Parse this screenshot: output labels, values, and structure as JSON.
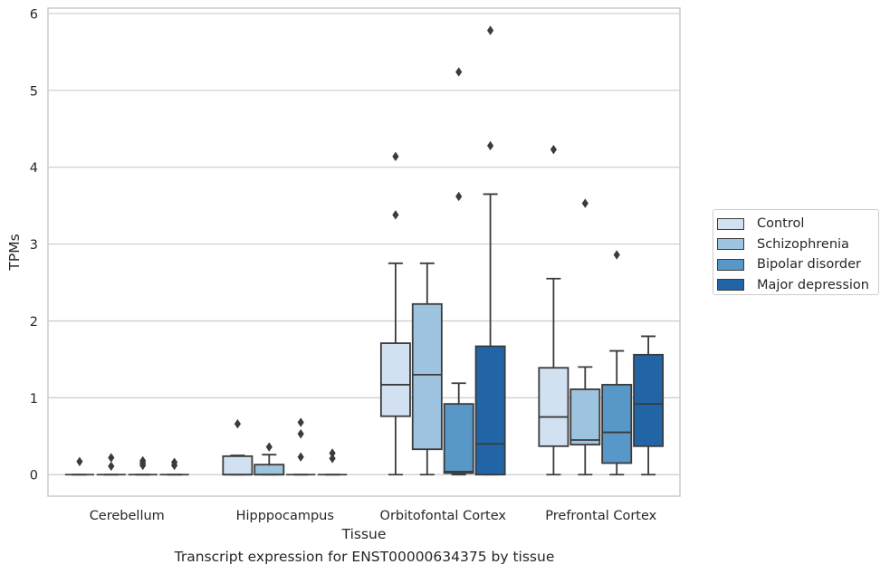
{
  "chart_data": {
    "type": "boxplot",
    "title": "",
    "caption": "Transcript expression for ENST00000634375 by tissue",
    "xlabel": "Tissue",
    "ylabel": "TPMs",
    "ylim": [
      -0.28,
      6.07
    ],
    "yticks": [
      0,
      1,
      2,
      3,
      4,
      5,
      6
    ],
    "grid": "horizontal",
    "legend_position": "right",
    "categories": [
      "Cerebellum",
      "Hipppocampus",
      "Orbitofontal Cortex",
      "Prefrontal Cortex"
    ],
    "series": [
      {
        "name": "Control",
        "color": "#d2e1f1",
        "boxes": [
          {
            "q1": 0,
            "median": 0,
            "q3": 0,
            "whisker_low": 0,
            "whisker_high": 0,
            "outliers": [
              0.17
            ]
          },
          {
            "q1": 0,
            "median": 0,
            "q3": 0.24,
            "whisker_low": 0,
            "whisker_high": 0.25,
            "outliers": [
              0.66
            ]
          },
          {
            "q1": 0.76,
            "median": 1.17,
            "q3": 1.71,
            "whisker_low": 0,
            "whisker_high": 2.75,
            "outliers": [
              3.38,
              4.14
            ]
          },
          {
            "q1": 0.37,
            "median": 0.75,
            "q3": 1.39,
            "whisker_low": 0,
            "whisker_high": 2.55,
            "outliers": [
              4.23
            ]
          }
        ]
      },
      {
        "name": "Schizophrenia",
        "color": "#9dc3df",
        "boxes": [
          {
            "q1": 0,
            "median": 0,
            "q3": 0,
            "whisker_low": 0,
            "whisker_high": 0,
            "outliers": [
              0.22,
              0.11
            ]
          },
          {
            "q1": 0,
            "median": 0,
            "q3": 0.13,
            "whisker_low": 0,
            "whisker_high": 0.26,
            "outliers": [
              0.36
            ]
          },
          {
            "q1": 0.33,
            "median": 1.3,
            "q3": 2.22,
            "whisker_low": 0,
            "whisker_high": 2.75,
            "outliers": []
          },
          {
            "q1": 0.39,
            "median": 0.45,
            "q3": 1.11,
            "whisker_low": 0,
            "whisker_high": 1.4,
            "outliers": [
              3.53
            ]
          }
        ]
      },
      {
        "name": "Bipolar disorder",
        "color": "#5898c9",
        "boxes": [
          {
            "q1": 0,
            "median": 0,
            "q3": 0,
            "whisker_low": 0,
            "whisker_high": 0,
            "outliers": [
              0.18,
              0.15,
              0.12
            ]
          },
          {
            "q1": 0,
            "median": 0,
            "q3": 0,
            "whisker_low": 0,
            "whisker_high": 0,
            "outliers": [
              0.23,
              0.53,
              0.68
            ]
          },
          {
            "q1": 0.02,
            "median": 0.04,
            "q3": 0.92,
            "whisker_low": 0,
            "whisker_high": 1.19,
            "outliers": [
              3.62,
              5.24
            ]
          },
          {
            "q1": 0.15,
            "median": 0.55,
            "q3": 1.17,
            "whisker_low": 0,
            "whisker_high": 1.61,
            "outliers": [
              2.86
            ]
          }
        ]
      },
      {
        "name": "Major depression",
        "color": "#2265a7",
        "boxes": [
          {
            "q1": 0,
            "median": 0,
            "q3": 0,
            "whisker_low": 0,
            "whisker_high": 0,
            "outliers": [
              0.16,
              0.12
            ]
          },
          {
            "q1": 0,
            "median": 0,
            "q3": 0,
            "whisker_low": 0,
            "whisker_high": 0,
            "outliers": [
              0.28,
              0.21
            ]
          },
          {
            "q1": 0,
            "median": 0.4,
            "q3": 1.67,
            "whisker_low": 0,
            "whisker_high": 3.65,
            "outliers": [
              4.28,
              5.78
            ]
          },
          {
            "q1": 0.37,
            "median": 0.92,
            "q3": 1.56,
            "whisker_low": 0,
            "whisker_high": 1.8,
            "outliers": []
          }
        ]
      }
    ]
  }
}
